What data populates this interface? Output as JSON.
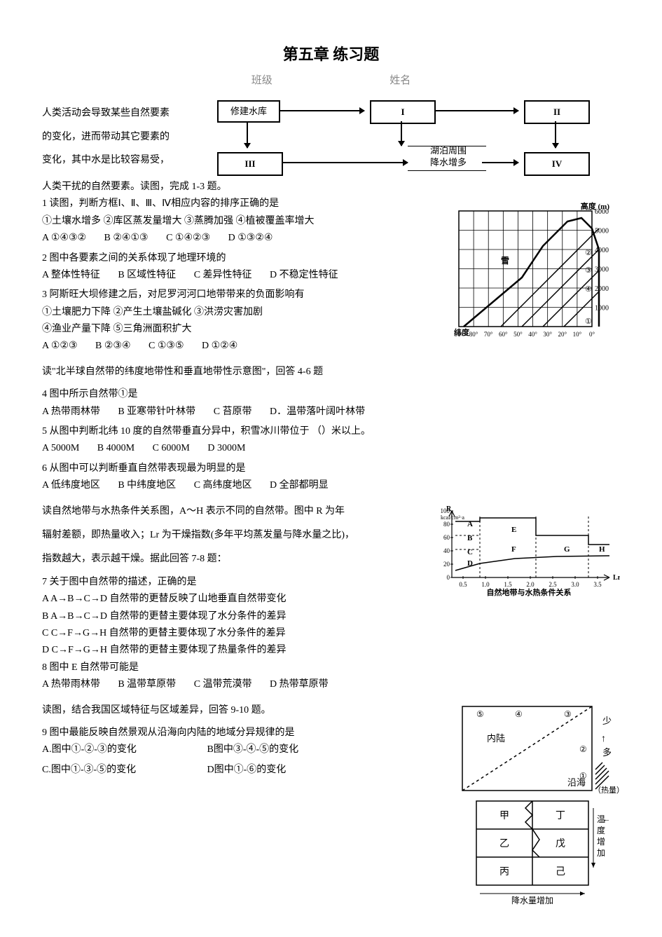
{
  "title": "第五章  练习题",
  "subhead_class": "班级",
  "subhead_name": "姓名",
  "intro_l1": "人类活动会导致某些自然要素",
  "intro_l2": "的变化，进而带动其它要素的",
  "intro_l3": "变化，其中水是比较容易受，",
  "intro_l4": "人类干扰的自然要素。读图，完成 1-3 题。",
  "flow": {
    "box0": "修建水库",
    "box1": "I",
    "box2": "II",
    "box3": "III",
    "mid_l1": "湖泊周围",
    "mid_l2": "降水增多",
    "box4": "IV"
  },
  "q1": {
    "stem": "1 读图，判断方框Ⅰ、Ⅱ、Ⅲ、Ⅳ相应内容的排序正确的是",
    "line2": "①土壤水增多  ②库区蒸发量增大   ③蒸腾加强   ④植被覆盖率增大",
    "A": "A  ①④③②",
    "B": "B  ②④①③",
    "C": "C  ①④②③",
    "D": "D  ①③②④"
  },
  "q2": {
    "stem": "2 图中各要素之间的关系体现了地理环境的",
    "A": "A 整体性特征",
    "B": "B 区域性特征",
    "C": "C 差异性特征",
    "D": "D 不稳定性特征"
  },
  "q3": {
    "stem": "3 阿斯旺大坝修建之后，对尼罗河河口地带带来的负面影响有",
    "line2": "①土壤肥力下降  ②产生土壤盐碱化  ③洪涝灾害加剧",
    "line3": "④渔业产量下降  ⑤三角洲面积扩大",
    "A": "A  ①②③",
    "B": "B  ②③④",
    "C": "C  ①③⑤",
    "D": "D  ①②④"
  },
  "lead46": "读\"北半球自然带的纬度地带性和垂直地带性示意图\"，回答 4-6 题",
  "q4": {
    "stem": "4 图中所示自然带①是",
    "A": "A 热带雨林带",
    "B": "B 亚寒带针叶林带",
    "C": "C 苔原带",
    "D": "D．温带落叶阔叶林带"
  },
  "q5": {
    "stem": "5 从图中判断北纬 10 度的自然带垂直分异中，积雪冰川带位于 （）米以上。",
    "A": "A 5000M",
    "B": "B 4000M",
    "C": "C 6000M",
    "D": "D 3000M"
  },
  "q6": {
    "stem": "6 从图中可以判断垂直自然带表现最为明显的是",
    "A": "A 低纬度地区",
    "B": "B 中纬度地区",
    "C": "C 高纬度地区",
    "D": "D 全部都明显"
  },
  "fig46": {
    "ylabel": "高度 (m)",
    "yticks": [
      6000,
      5000,
      4000,
      3000,
      2000,
      1000
    ],
    "xlabel": "纬度",
    "xticks": [
      "90°",
      "80°",
      "70°",
      "60°",
      "50°",
      "40°",
      "30°",
      "20°",
      "10°",
      "0°"
    ],
    "snow": "雪",
    "nums": [
      "①",
      "②",
      "③",
      "④",
      "⑤"
    ],
    "line_color": "#000",
    "grid_color": "#000",
    "bg": "#fff",
    "curve": [
      [
        7,
        0
      ],
      [
        90,
        70
      ],
      [
        120,
        115
      ],
      [
        155,
        150
      ],
      [
        175,
        155
      ],
      [
        190,
        140
      ],
      [
        200,
        110
      ],
      [
        200,
        0
      ]
    ],
    "diag1": [
      [
        60,
        0
      ],
      [
        200,
        140
      ]
    ],
    "diag2": [
      [
        90,
        0
      ],
      [
        200,
        110
      ]
    ],
    "diag3": [
      [
        120,
        0
      ],
      [
        200,
        80
      ]
    ],
    "diag4": [
      [
        150,
        0
      ],
      [
        200,
        50
      ]
    ]
  },
  "lead78_l1": "读自然地带与水热条件关系图，A～H 表示不同的自然带。图中 R 为年",
  "lead78_l2": "辐射差额，即热量收入；Lr 为干燥指数(多年平均蒸发量与降水量之比)，",
  "lead78_l3": "指数越大，表示越干燥。据此回答 7-8 题：",
  "q7": {
    "stem": "7 关于图中自然带的描述，正确的是",
    "A": "A A→B→C→D 自然带的更替反映了山地垂直自然带变化",
    "B": "B A→B→C→D 自然带的更替主要体现了水分条件的差异",
    "C": "C C→F→G→H 自然带的更替主要体现了水分条件的差异",
    "D": "D C→F→G→H 自然带的更替主要体现了热量条件的差异"
  },
  "q8": {
    "stem": "8 图中 E 自然带可能是",
    "A": "A 热带雨林带",
    "B": "B 温带草原带",
    "C": "C 温带荒漠带",
    "D": "D 热带草原带"
  },
  "fig78": {
    "ylabel": "R\nkcal/cm²·a",
    "yticks": [
      100,
      80,
      60,
      40,
      20,
      0
    ],
    "xticks": [
      "0.5",
      "1.0",
      "1.5",
      "2.0",
      "2.5",
      "3.0",
      "3.5"
    ],
    "xlabel": "Lr",
    "caption": "自然地带与水热条件关系",
    "labels": [
      "A",
      "B",
      "C",
      "D",
      "E",
      "F",
      "G",
      "H"
    ],
    "label_pos": {
      "A": [
        22,
        22
      ],
      "B": [
        22,
        42
      ],
      "C": [
        22,
        62
      ],
      "D": [
        22,
        78
      ],
      "E": [
        85,
        30
      ],
      "F": [
        85,
        58
      ],
      "G": [
        160,
        58
      ],
      "H": [
        210,
        58
      ]
    },
    "line_color": "#000",
    "dash": "4,3",
    "upper_step": [
      [
        5,
        15
      ],
      [
        40,
        15
      ],
      [
        40,
        10
      ],
      [
        120,
        10
      ],
      [
        120,
        35
      ],
      [
        195,
        35
      ],
      [
        195,
        48
      ],
      [
        225,
        48
      ]
    ],
    "lower_curve": [
      [
        5,
        85
      ],
      [
        40,
        75
      ],
      [
        90,
        68
      ],
      [
        150,
        65
      ],
      [
        225,
        64
      ]
    ]
  },
  "lead910": "读图，结合我国区域特征与区域差异，回答 9-10 题。",
  "q9": {
    "stem": "9 图中最能反映自然景观从沿海向内陆的地域分异规律的是",
    "A": "A.图中①-②-③的变化",
    "B": "B图中③-④-⑤的变化",
    "C": "C.图中①-③-⑤的变化",
    "D": "D图中①-⑥的变化"
  },
  "fig910": {
    "top_nums": [
      "⑤",
      "④",
      "③",
      "②",
      "①"
    ],
    "inland": "内陆",
    "coast": "沿海",
    "heat_few": "少",
    "heat_many": "多",
    "heat_label": "（热量）",
    "cells": [
      "甲",
      "乙",
      "丙",
      "丁",
      "戊",
      "己"
    ],
    "right_label": "温度增加",
    "bottom_label": "降水量增加",
    "line_color": "#000"
  }
}
